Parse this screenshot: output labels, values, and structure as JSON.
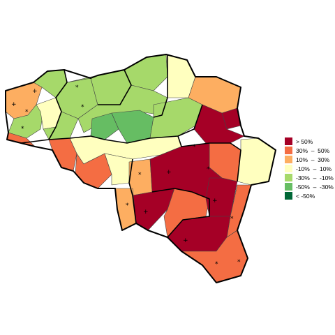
{
  "legend": [
    {
      "label": "> 50%",
      "color": "#a50026"
    },
    {
      "label": "30%  –  50%",
      "color": "#f46d43"
    },
    {
      "label": "10%  –  30%",
      "color": "#fdae61"
    },
    {
      "label": "-10%  –  10%",
      "color": "#ffffbf"
    },
    {
      "label": "-30%  –  -10%",
      "color": "#a6d96a"
    },
    {
      "label": "-50%  –  -30%",
      "color": "#66bd63"
    },
    {
      "label": "< -50%",
      "color": "#006837"
    }
  ],
  "markers": {
    "plus": "+",
    "star": "*"
  }
}
